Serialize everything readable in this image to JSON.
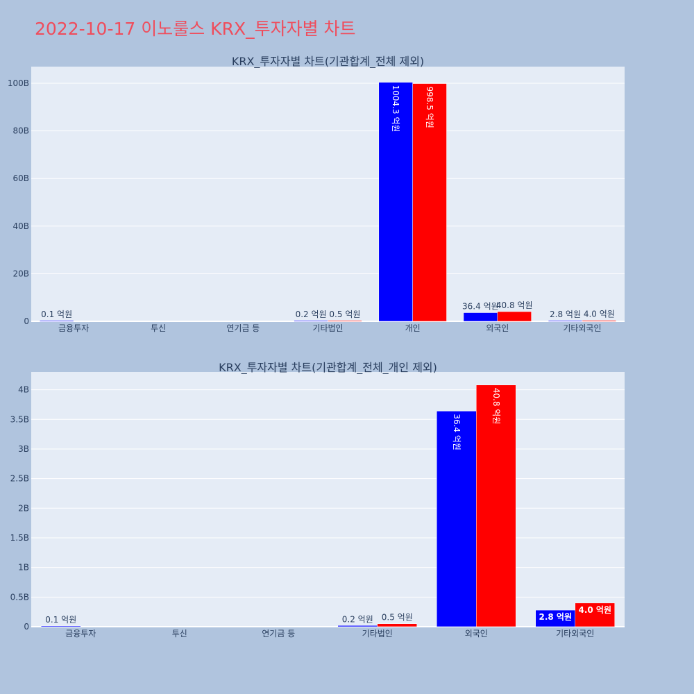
{
  "page_title": "2022-10-17 이노룰스 KRX_투자자별 차트",
  "colors": {
    "series_a": "#0000ff",
    "series_b": "#ff0000",
    "plot_bg": "#e5ecf6",
    "page_bg": "#b0c4de",
    "title": "#ef4d5c",
    "text": "#2a3f5f"
  },
  "chart_data": [
    {
      "type": "bar",
      "title": "KRX_투자자별 차트(기관합계_전체 제외)",
      "categories": [
        "금융투자",
        "투신",
        "연기금 등",
        "기타법인",
        "개인",
        "외국인",
        "기타외국인"
      ],
      "ylim": [
        0,
        107000000000
      ],
      "yticks": [
        0,
        20000000000,
        40000000000,
        60000000000,
        80000000000,
        100000000000
      ],
      "ytick_labels": [
        "0",
        "20B",
        "40B",
        "60B",
        "80B",
        "100B"
      ],
      "grid": true,
      "series": [
        {
          "values": [
            10000000,
            0,
            0,
            20000000,
            100430000000,
            3640000000,
            280000000
          ],
          "labels": [
            "0.1 억원",
            "",
            "",
            "0.2 억원",
            "1004.3 억원",
            "36.4 억원",
            "2.8 억원"
          ]
        },
        {
          "values": [
            0,
            0,
            0,
            50000000,
            99850000000,
            4080000000,
            400000000
          ],
          "labels": [
            "",
            "",
            "",
            "0.5 억원",
            "998.5 억원",
            "40.8 억원",
            "4.0 억원"
          ]
        }
      ]
    },
    {
      "type": "bar",
      "title": "KRX_투자자별 차트(기관합계_전체_개인 제외)",
      "categories": [
        "금융투자",
        "투신",
        "연기금 등",
        "기타법인",
        "외국인",
        "기타외국인"
      ],
      "ylim": [
        0,
        4300000000
      ],
      "yticks": [
        0,
        500000000,
        1000000000,
        1500000000,
        2000000000,
        2500000000,
        3000000000,
        3500000000,
        4000000000
      ],
      "ytick_labels": [
        "0",
        "0.5B",
        "1B",
        "1.5B",
        "2B",
        "2.5B",
        "3B",
        "3.5B",
        "4B"
      ],
      "grid": true,
      "series": [
        {
          "values": [
            10000000,
            0,
            0,
            20000000,
            3640000000,
            280000000
          ],
          "labels": [
            "0.1 억원",
            "",
            "",
            "0.2 억원",
            "36.4 억원",
            "2.8 억원"
          ]
        },
        {
          "values": [
            0,
            0,
            0,
            50000000,
            4080000000,
            400000000
          ],
          "labels": [
            "",
            "",
            "",
            "0.5 억원",
            "40.8 억원",
            "4.0 억원"
          ]
        }
      ]
    }
  ]
}
